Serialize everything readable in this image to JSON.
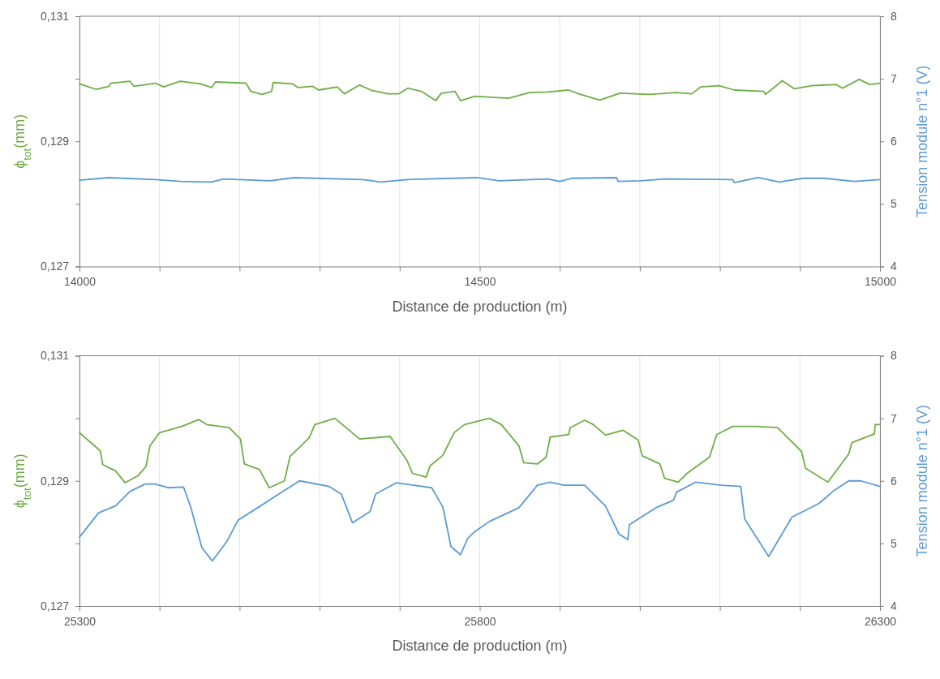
{
  "chart_data": [
    {
      "type": "line",
      "xlabel": "Distance de production (m)",
      "ylabel": "ϕ$_{tot}$(mm)",
      "y2label": "Tension module n°1 (V)",
      "grid": "x",
      "xlim": [
        14000,
        15000
      ],
      "xticks": [
        14000,
        {
          "value": 14100,
          "label": null
        },
        {
          "value": 14200,
          "label": null
        },
        {
          "value": 14300,
          "label": null
        },
        {
          "value": 14400,
          "label": null
        },
        14500,
        {
          "value": 14600,
          "label": null
        },
        {
          "value": 14700,
          "label": null
        },
        {
          "value": 14800,
          "label": null
        },
        {
          "value": 14900,
          "label": null
        },
        15000
      ],
      "ylim": [
        0.127,
        0.131
      ],
      "yticks": [
        {
          "value": 0.127,
          "label": "0,127"
        },
        {
          "value": 0.128,
          "label": null
        },
        {
          "value": 0.129,
          "label": "0,129"
        },
        {
          "value": 0.13,
          "label": null
        },
        {
          "value": 0.131,
          "label": "0,131"
        }
      ],
      "y2lim": [
        4,
        8
      ],
      "y2ticks": [
        4,
        5,
        6,
        7,
        8
      ],
      "series": [
        {
          "color": "#70ad47",
          "x": [
            14000,
            14021,
            14037,
            14039,
            14063,
            14068,
            14095,
            14105,
            14126,
            14151,
            14165,
            14170,
            14208,
            14214,
            14228,
            14240,
            14242,
            14266,
            14273,
            14291,
            14299,
            14322,
            14331,
            14350,
            14364,
            14385,
            14399,
            14410,
            14427,
            14445,
            14452,
            14469,
            14476,
            14494,
            14536,
            14562,
            14585,
            14611,
            14626,
            14650,
            14675,
            14712,
            14746,
            14765,
            14776,
            14799,
            14818,
            14855,
            14857,
            14878,
            14893,
            14915,
            14945,
            14953,
            14974,
            14987,
            15000
          ],
          "values": [
            0.12992,
            0.12983,
            0.12988,
            0.12993,
            0.12996,
            0.12988,
            0.12993,
            0.12987,
            0.12996,
            0.12992,
            0.12986,
            0.12995,
            0.12993,
            0.1298,
            0.12975,
            0.1298,
            0.12994,
            0.12992,
            0.12986,
            0.12988,
            0.12982,
            0.12987,
            0.12976,
            0.1299,
            0.12982,
            0.12976,
            0.12976,
            0.12985,
            0.1298,
            0.12965,
            0.12977,
            0.1298,
            0.12965,
            0.12972,
            0.12969,
            0.12978,
            0.12979,
            0.12982,
            0.12975,
            0.12966,
            0.12977,
            0.12975,
            0.12978,
            0.12976,
            0.12987,
            0.12989,
            0.12982,
            0.1298,
            0.12975,
            0.12997,
            0.12984,
            0.12989,
            0.12991,
            0.12985,
            0.12999,
            0.12991,
            0.12993
          ]
        },
        {
          "color": "#5b9bd5",
          "axis": "y2",
          "x": [
            14000,
            14037,
            14095,
            14126,
            14165,
            14180,
            14238,
            14268,
            14354,
            14376,
            14410,
            14497,
            14524,
            14585,
            14600,
            14615,
            14671,
            14673,
            14701,
            14731,
            14816,
            14818,
            14848,
            14874,
            14904,
            14930,
            14968,
            15000
          ],
          "values": [
            5.38,
            5.42,
            5.39,
            5.36,
            5.35,
            5.4,
            5.37,
            5.42,
            5.39,
            5.35,
            5.39,
            5.42,
            5.37,
            5.4,
            5.36,
            5.41,
            5.42,
            5.36,
            5.37,
            5.4,
            5.39,
            5.34,
            5.42,
            5.35,
            5.41,
            5.41,
            5.36,
            5.39
          ]
        }
      ]
    },
    {
      "type": "line",
      "xlabel": "Distance de production (m)",
      "ylabel": "ϕ$_{tot}$(mm)",
      "y2label": "Tension module n°1 (V)",
      "grid": "x",
      "xlim": [
        25300,
        26300
      ],
      "xticks": [
        25300,
        {
          "value": 25400,
          "label": null
        },
        {
          "value": 25500,
          "label": null
        },
        {
          "value": 25600,
          "label": null
        },
        {
          "value": 25700,
          "label": null
        },
        25800,
        {
          "value": 25900,
          "label": null
        },
        {
          "value": 26000,
          "label": null
        },
        {
          "value": 26100,
          "label": null
        },
        {
          "value": 26200,
          "label": null
        },
        26300
      ],
      "ylim": [
        0.127,
        0.131
      ],
      "yticks": [
        {
          "value": 0.127,
          "label": "0,127"
        },
        {
          "value": 0.128,
          "label": null
        },
        {
          "value": 0.129,
          "label": "0,129"
        },
        {
          "value": 0.13,
          "label": null
        },
        {
          "value": 0.131,
          "label": "0,131"
        }
      ],
      "y2lim": [
        4,
        8
      ],
      "y2ticks": [
        4,
        5,
        6,
        7,
        8
      ],
      "series": [
        {
          "color": "#70ad47",
          "x": [
            25300,
            25326,
            25329,
            25345,
            25357,
            25373,
            25383,
            25388,
            25400,
            25428,
            25449,
            25459,
            25487,
            25501,
            25506,
            25525,
            25537,
            25556,
            25563,
            25587,
            25594,
            25619,
            25650,
            25688,
            25709,
            25716,
            25733,
            25738,
            25754,
            25768,
            25781,
            25812,
            25827,
            25849,
            25855,
            25872,
            25883,
            25888,
            25911,
            25913,
            25931,
            25942,
            25957,
            25979,
            25998,
            26003,
            26025,
            26031,
            26048,
            26059,
            26087,
            26096,
            26116,
            26146,
            26172,
            26202,
            26207,
            26235,
            26261,
            26265,
            26293,
            26294,
            26300
          ],
          "values": [
            0.12977,
            0.12948,
            0.12926,
            0.12916,
            0.12897,
            0.12908,
            0.12923,
            0.12956,
            0.12977,
            0.12987,
            0.12998,
            0.1299,
            0.12985,
            0.12967,
            0.12927,
            0.12918,
            0.12889,
            0.129,
            0.12939,
            0.12969,
            0.1299,
            0.13,
            0.12967,
            0.12971,
            0.12933,
            0.12912,
            0.12906,
            0.12924,
            0.12941,
            0.12977,
            0.1299,
            0.13,
            0.1299,
            0.12956,
            0.12929,
            0.12927,
            0.12938,
            0.1297,
            0.12974,
            0.12985,
            0.12997,
            0.1299,
            0.12973,
            0.12981,
            0.12965,
            0.1294,
            0.12927,
            0.12904,
            0.12898,
            0.12912,
            0.12938,
            0.12974,
            0.12987,
            0.12987,
            0.12985,
            0.12947,
            0.1292,
            0.12898,
            0.12943,
            0.12961,
            0.12975,
            0.1299,
            0.1299
          ]
        },
        {
          "color": "#5b9bd5",
          "axis": "y2",
          "x": [
            25300,
            25324,
            25345,
            25363,
            25382,
            25394,
            25411,
            25430,
            25439,
            25453,
            25466,
            25484,
            25498,
            25525,
            25549,
            25575,
            25612,
            25627,
            25641,
            25663,
            25670,
            25696,
            25740,
            25754,
            25764,
            25776,
            25785,
            25794,
            25812,
            25849,
            25872,
            25888,
            25905,
            25931,
            25957,
            25974,
            25985,
            25987,
            26020,
            26042,
            26046,
            26070,
            26102,
            26126,
            26131,
            26161,
            26190,
            26224,
            26242,
            26261,
            26276,
            26300
          ],
          "values": [
            5.1,
            5.49,
            5.6,
            5.83,
            5.95,
            5.95,
            5.89,
            5.9,
            5.58,
            4.93,
            4.72,
            5.03,
            5.37,
            5.59,
            5.79,
            6.0,
            5.91,
            5.79,
            5.33,
            5.51,
            5.79,
            5.97,
            5.89,
            5.58,
            4.95,
            4.82,
            5.08,
            5.19,
            5.35,
            5.57,
            5.93,
            5.98,
            5.93,
            5.93,
            5.6,
            5.15,
            5.06,
            5.3,
            5.57,
            5.69,
            5.82,
            5.98,
            5.93,
            5.91,
            5.39,
            4.79,
            5.42,
            5.64,
            5.84,
            6.0,
            6.0,
            5.91
          ]
        }
      ]
    }
  ]
}
